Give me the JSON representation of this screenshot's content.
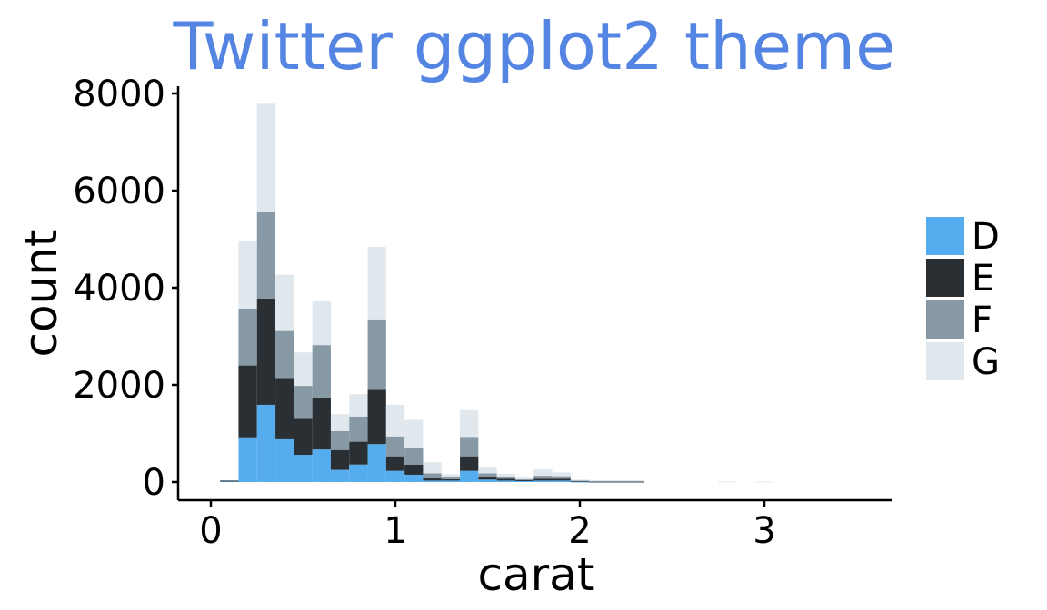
{
  "chart_data": {
    "type": "bar",
    "stacked": true,
    "title": "Twitter ggplot2 theme",
    "xlabel": "carat",
    "ylabel": "count",
    "bin_width": 0.1,
    "x": [
      0.1,
      0.2,
      0.3,
      0.4,
      0.5,
      0.6,
      0.7,
      0.8,
      0.9,
      1.0,
      1.1,
      1.2,
      1.3,
      1.4,
      1.5,
      1.6,
      1.7,
      1.8,
      1.9,
      2.0,
      2.1,
      2.2,
      2.3,
      2.4,
      2.5,
      2.6,
      2.7,
      2.8,
      2.9,
      3.0
    ],
    "xlim": [
      -0.1,
      3.7
    ],
    "ylim": [
      0,
      8100
    ],
    "x_ticks": [
      0,
      1,
      2,
      3
    ],
    "x_tick_labels": [
      "0",
      "1",
      "2",
      "3"
    ],
    "y_ticks": [
      0,
      2000,
      4000,
      6000,
      8000
    ],
    "y_tick_labels": [
      "0",
      "2000",
      "4000",
      "6000",
      "8000"
    ],
    "series": [
      {
        "name": "D",
        "color": "#55acee",
        "values": [
          20,
          920,
          1590,
          880,
          560,
          670,
          250,
          360,
          780,
          230,
          150,
          30,
          30,
          230,
          50,
          30,
          20,
          30,
          30,
          10,
          0,
          0,
          0,
          0,
          0,
          0,
          0,
          0,
          0,
          0
        ]
      },
      {
        "name": "E",
        "color": "#292f33",
        "values": [
          10,
          1480,
          2190,
          1260,
          740,
          1050,
          410,
          470,
          1120,
          300,
          210,
          50,
          30,
          300,
          60,
          40,
          20,
          40,
          40,
          10,
          10,
          10,
          10,
          0,
          0,
          0,
          0,
          0,
          0,
          0
        ]
      },
      {
        "name": "F",
        "color": "#8899a6",
        "values": [
          0,
          1170,
          1790,
          970,
          680,
          1100,
          390,
          520,
          1450,
          410,
          350,
          100,
          50,
          400,
          70,
          40,
          20,
          60,
          50,
          10,
          10,
          10,
          10,
          0,
          0,
          0,
          0,
          0,
          0,
          0
        ]
      },
      {
        "name": "G",
        "color": "#e1e8ed",
        "values": [
          0,
          1400,
          2220,
          1160,
          690,
          900,
          350,
          460,
          1490,
          650,
          570,
          230,
          50,
          550,
          130,
          60,
          30,
          130,
          80,
          20,
          20,
          20,
          20,
          0,
          0,
          0,
          0,
          10,
          0,
          10
        ]
      }
    ],
    "legend_position": "right",
    "grid": false
  },
  "colors": {
    "title": "#5585e3",
    "axis": "#000000",
    "background": "#ffffff"
  }
}
